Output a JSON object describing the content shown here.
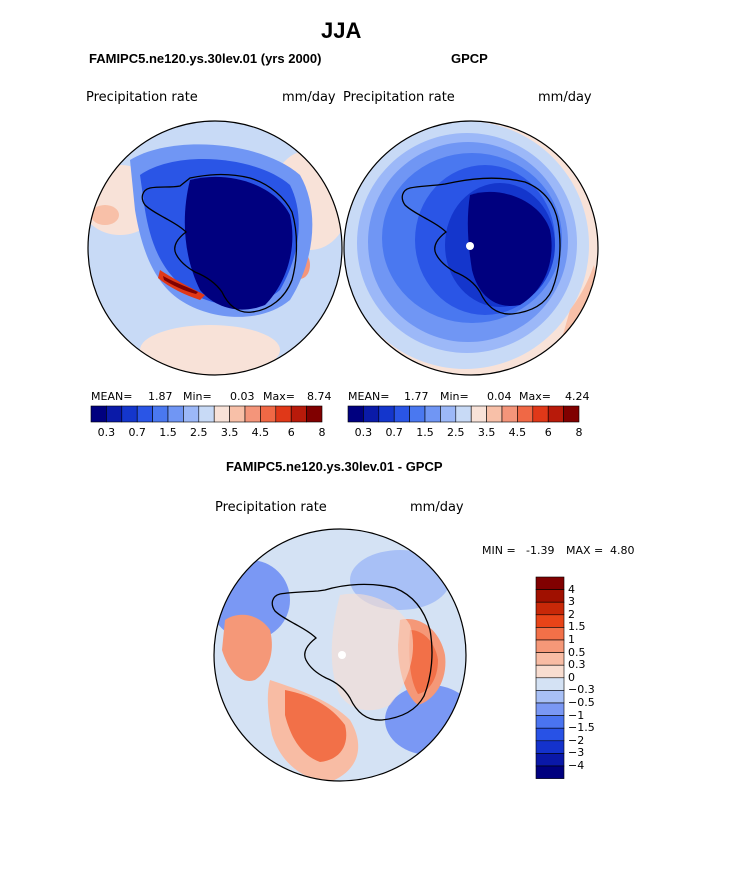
{
  "page": {
    "main_title": "JJA",
    "difference_title": "FAMIPC5.ne120.ys.30lev.01 - GPCP"
  },
  "panels": [
    {
      "id": "model",
      "title": "FAMIPC5.ne120.ys.30lev.01 (yrs 2000)",
      "variable": "Precipitation rate",
      "units": "mm/day",
      "stats": {
        "mean_label": "MEAN=",
        "mean": "1.87",
        "min_label": "Min=",
        "min": "0.03",
        "max_label": "Max=",
        "max": "8.74"
      }
    },
    {
      "id": "obs",
      "title": "GPCP",
      "variable": "Precipitation rate",
      "units": "mm/day",
      "stats": {
        "mean_label": "MEAN=",
        "mean": "1.77",
        "min_label": "Min=",
        "min": "0.04",
        "max_label": "Max=",
        "max": "4.24"
      }
    },
    {
      "id": "diff",
      "variable": "Precipitation rate",
      "units": "mm/day",
      "stats": {
        "min_label": "MIN =",
        "min": "-1.39",
        "max_label": "MAX =",
        "max": "4.80"
      }
    }
  ],
  "colors": {
    "abs_scale": [
      "#00007f",
      "#0a1aa8",
      "#1436cc",
      "#2a55e6",
      "#4a78f0",
      "#7096f4",
      "#9cb8f8",
      "#c8daf6",
      "#f8e2d8",
      "#f8c0a8",
      "#f4957a",
      "#f06845",
      "#e03818",
      "#b81a0a",
      "#800000"
    ],
    "diff_scale": [
      "#00007f",
      "#0a18a8",
      "#1432cc",
      "#2852e6",
      "#4a74f0",
      "#7a98f4",
      "#a8c0f6",
      "#d4e2f4",
      "#f8ddd0",
      "#f8bca4",
      "#f59878",
      "#f27048",
      "#e84418",
      "#c82808",
      "#a01000",
      "#800000"
    ]
  },
  "chart_data": [
    {
      "type": "heatmap",
      "title": "FAMIPC5.ne120.ys.30lev.01 (yrs 2000)",
      "variable": "Precipitation rate",
      "units": "mm/day",
      "projection": "south-polar stereographic",
      "colorbar_ticks": [
        "0.3",
        "0.7",
        "1.5",
        "2.5",
        "3.5",
        "4.5",
        "6",
        "8"
      ],
      "levels": [
        0.2,
        0.3,
        0.5,
        0.7,
        1,
        1.5,
        2,
        2.5,
        3,
        3.5,
        4,
        4.5,
        5,
        6,
        7,
        8
      ],
      "mean": 1.87,
      "min": 0.03,
      "max": 8.74
    },
    {
      "type": "heatmap",
      "title": "GPCP",
      "variable": "Precipitation rate",
      "units": "mm/day",
      "projection": "south-polar stereographic",
      "colorbar_ticks": [
        "0.3",
        "0.7",
        "1.5",
        "2.5",
        "3.5",
        "4.5",
        "6",
        "8"
      ],
      "levels": [
        0.2,
        0.3,
        0.5,
        0.7,
        1,
        1.5,
        2,
        2.5,
        3,
        3.5,
        4,
        4.5,
        5,
        6,
        7,
        8
      ],
      "mean": 1.77,
      "min": 0.04,
      "max": 4.24
    },
    {
      "type": "heatmap",
      "title": "FAMIPC5.ne120.ys.30lev.01 - GPCP",
      "variable": "Precipitation rate",
      "units": "mm/day",
      "projection": "south-polar stereographic",
      "colorbar_ticks": [
        "4",
        "3",
        "2",
        "1.5",
        "1",
        "0.5",
        "0.3",
        "0",
        "−0.3",
        "−0.5",
        "−1",
        "−1.5",
        "−2",
        "−3",
        "−4"
      ],
      "levels": [
        -4,
        -3,
        -2,
        -1.5,
        -1,
        -0.5,
        -0.3,
        0,
        0.3,
        0.5,
        1,
        1.5,
        2,
        3,
        4
      ],
      "min": -1.39,
      "max": 4.8
    }
  ]
}
